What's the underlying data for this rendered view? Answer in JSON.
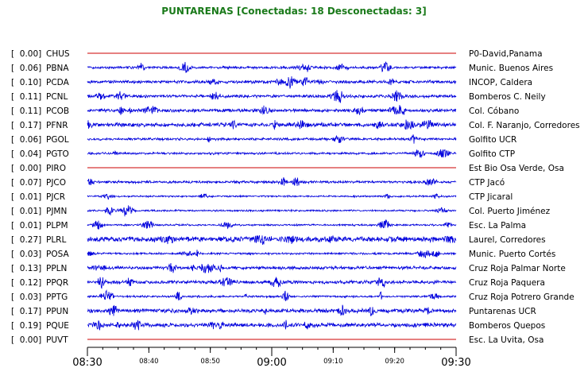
{
  "chart_data": {
    "type": "line",
    "title": "PUNTARENAS [Conectadas: 18 Desconectadas: 3]",
    "colors": {
      "connected": "#0000dd",
      "disconnected": "#cc0000",
      "title": "#1a7a1a"
    },
    "x_ticks": [
      {
        "label": "08:30",
        "major": true
      },
      {
        "label": "08:40",
        "major": false
      },
      {
        "label": "08:50",
        "major": false
      },
      {
        "label": "09:00",
        "major": true
      },
      {
        "label": "09:10",
        "major": false
      },
      {
        "label": "09:20",
        "major": false
      },
      {
        "label": "09:30",
        "major": true
      }
    ],
    "xlim": [
      "08:30",
      "09:30"
    ],
    "series": [
      {
        "value": "[  0.00]",
        "code": "CHUS",
        "name": "P0-David,Panama",
        "connected": false,
        "amplitude": 0
      },
      {
        "value": "[  0.06]",
        "code": "PBNA",
        "name": "Munic. Buenos Aires",
        "connected": true,
        "amplitude": 0.06
      },
      {
        "value": "[  0.10]",
        "code": "PCDA",
        "name": "INCOP, Caldera",
        "connected": true,
        "amplitude": 0.1
      },
      {
        "value": "[  0.11]",
        "code": "PCNL",
        "name": "Bomberos C. Neily",
        "connected": true,
        "amplitude": 0.11
      },
      {
        "value": "[  0.11]",
        "code": "PCOB",
        "name": "Col. Cóbano",
        "connected": true,
        "amplitude": 0.11
      },
      {
        "value": "[  0.17]",
        "code": "PFNR",
        "name": "Col. F. Naranjo, Corredores",
        "connected": true,
        "amplitude": 0.17
      },
      {
        "value": "[  0.06]",
        "code": "PGOL",
        "name": "Golfito UCR",
        "connected": true,
        "amplitude": 0.06
      },
      {
        "value": "[  0.04]",
        "code": "PGTO",
        "name": "Golfito CTP",
        "connected": true,
        "amplitude": 0.04
      },
      {
        "value": "[  0.00]",
        "code": "PIRO",
        "name": "Est Bio Osa Verde, Osa",
        "connected": false,
        "amplitude": 0
      },
      {
        "value": "[  0.07]",
        "code": "PJCO",
        "name": "CTP Jacó",
        "connected": true,
        "amplitude": 0.07
      },
      {
        "value": "[  0.01]",
        "code": "PJCR",
        "name": "CTP Jicaral",
        "connected": true,
        "amplitude": 0.01
      },
      {
        "value": "[  0.01]",
        "code": "PJMN",
        "name": "Col. Puerto Jiménez",
        "connected": true,
        "amplitude": 0.01
      },
      {
        "value": "[  0.01]",
        "code": "PLPM",
        "name": "Esc. La Palma",
        "connected": true,
        "amplitude": 0.01
      },
      {
        "value": "[  0.27]",
        "code": "PLRL",
        "name": "Laurel, Corredores",
        "connected": true,
        "amplitude": 0.27
      },
      {
        "value": "[  0.03]",
        "code": "POSA",
        "name": "Munic. Puerto Cortés",
        "connected": true,
        "amplitude": 0.03
      },
      {
        "value": "[  0.13]",
        "code": "PPLN",
        "name": "Cruz Roja Palmar Norte",
        "connected": true,
        "amplitude": 0.13
      },
      {
        "value": "[  0.12]",
        "code": "PPQR",
        "name": "Cruz Roja Paquera",
        "connected": true,
        "amplitude": 0.12
      },
      {
        "value": "[  0.03]",
        "code": "PPTG",
        "name": "Cruz Roja Potrero Grande",
        "connected": true,
        "amplitude": 0.03
      },
      {
        "value": "[  0.17]",
        "code": "PPUN",
        "name": "Puntarenas UCR",
        "connected": true,
        "amplitude": 0.17
      },
      {
        "value": "[  0.19]",
        "code": "PQUE",
        "name": "Bomberos Quepos",
        "connected": true,
        "amplitude": 0.19
      },
      {
        "value": "[  0.00]",
        "code": "PUVT",
        "name": "Esc. La Uvita, Osa",
        "connected": false,
        "amplitude": 0
      }
    ]
  }
}
